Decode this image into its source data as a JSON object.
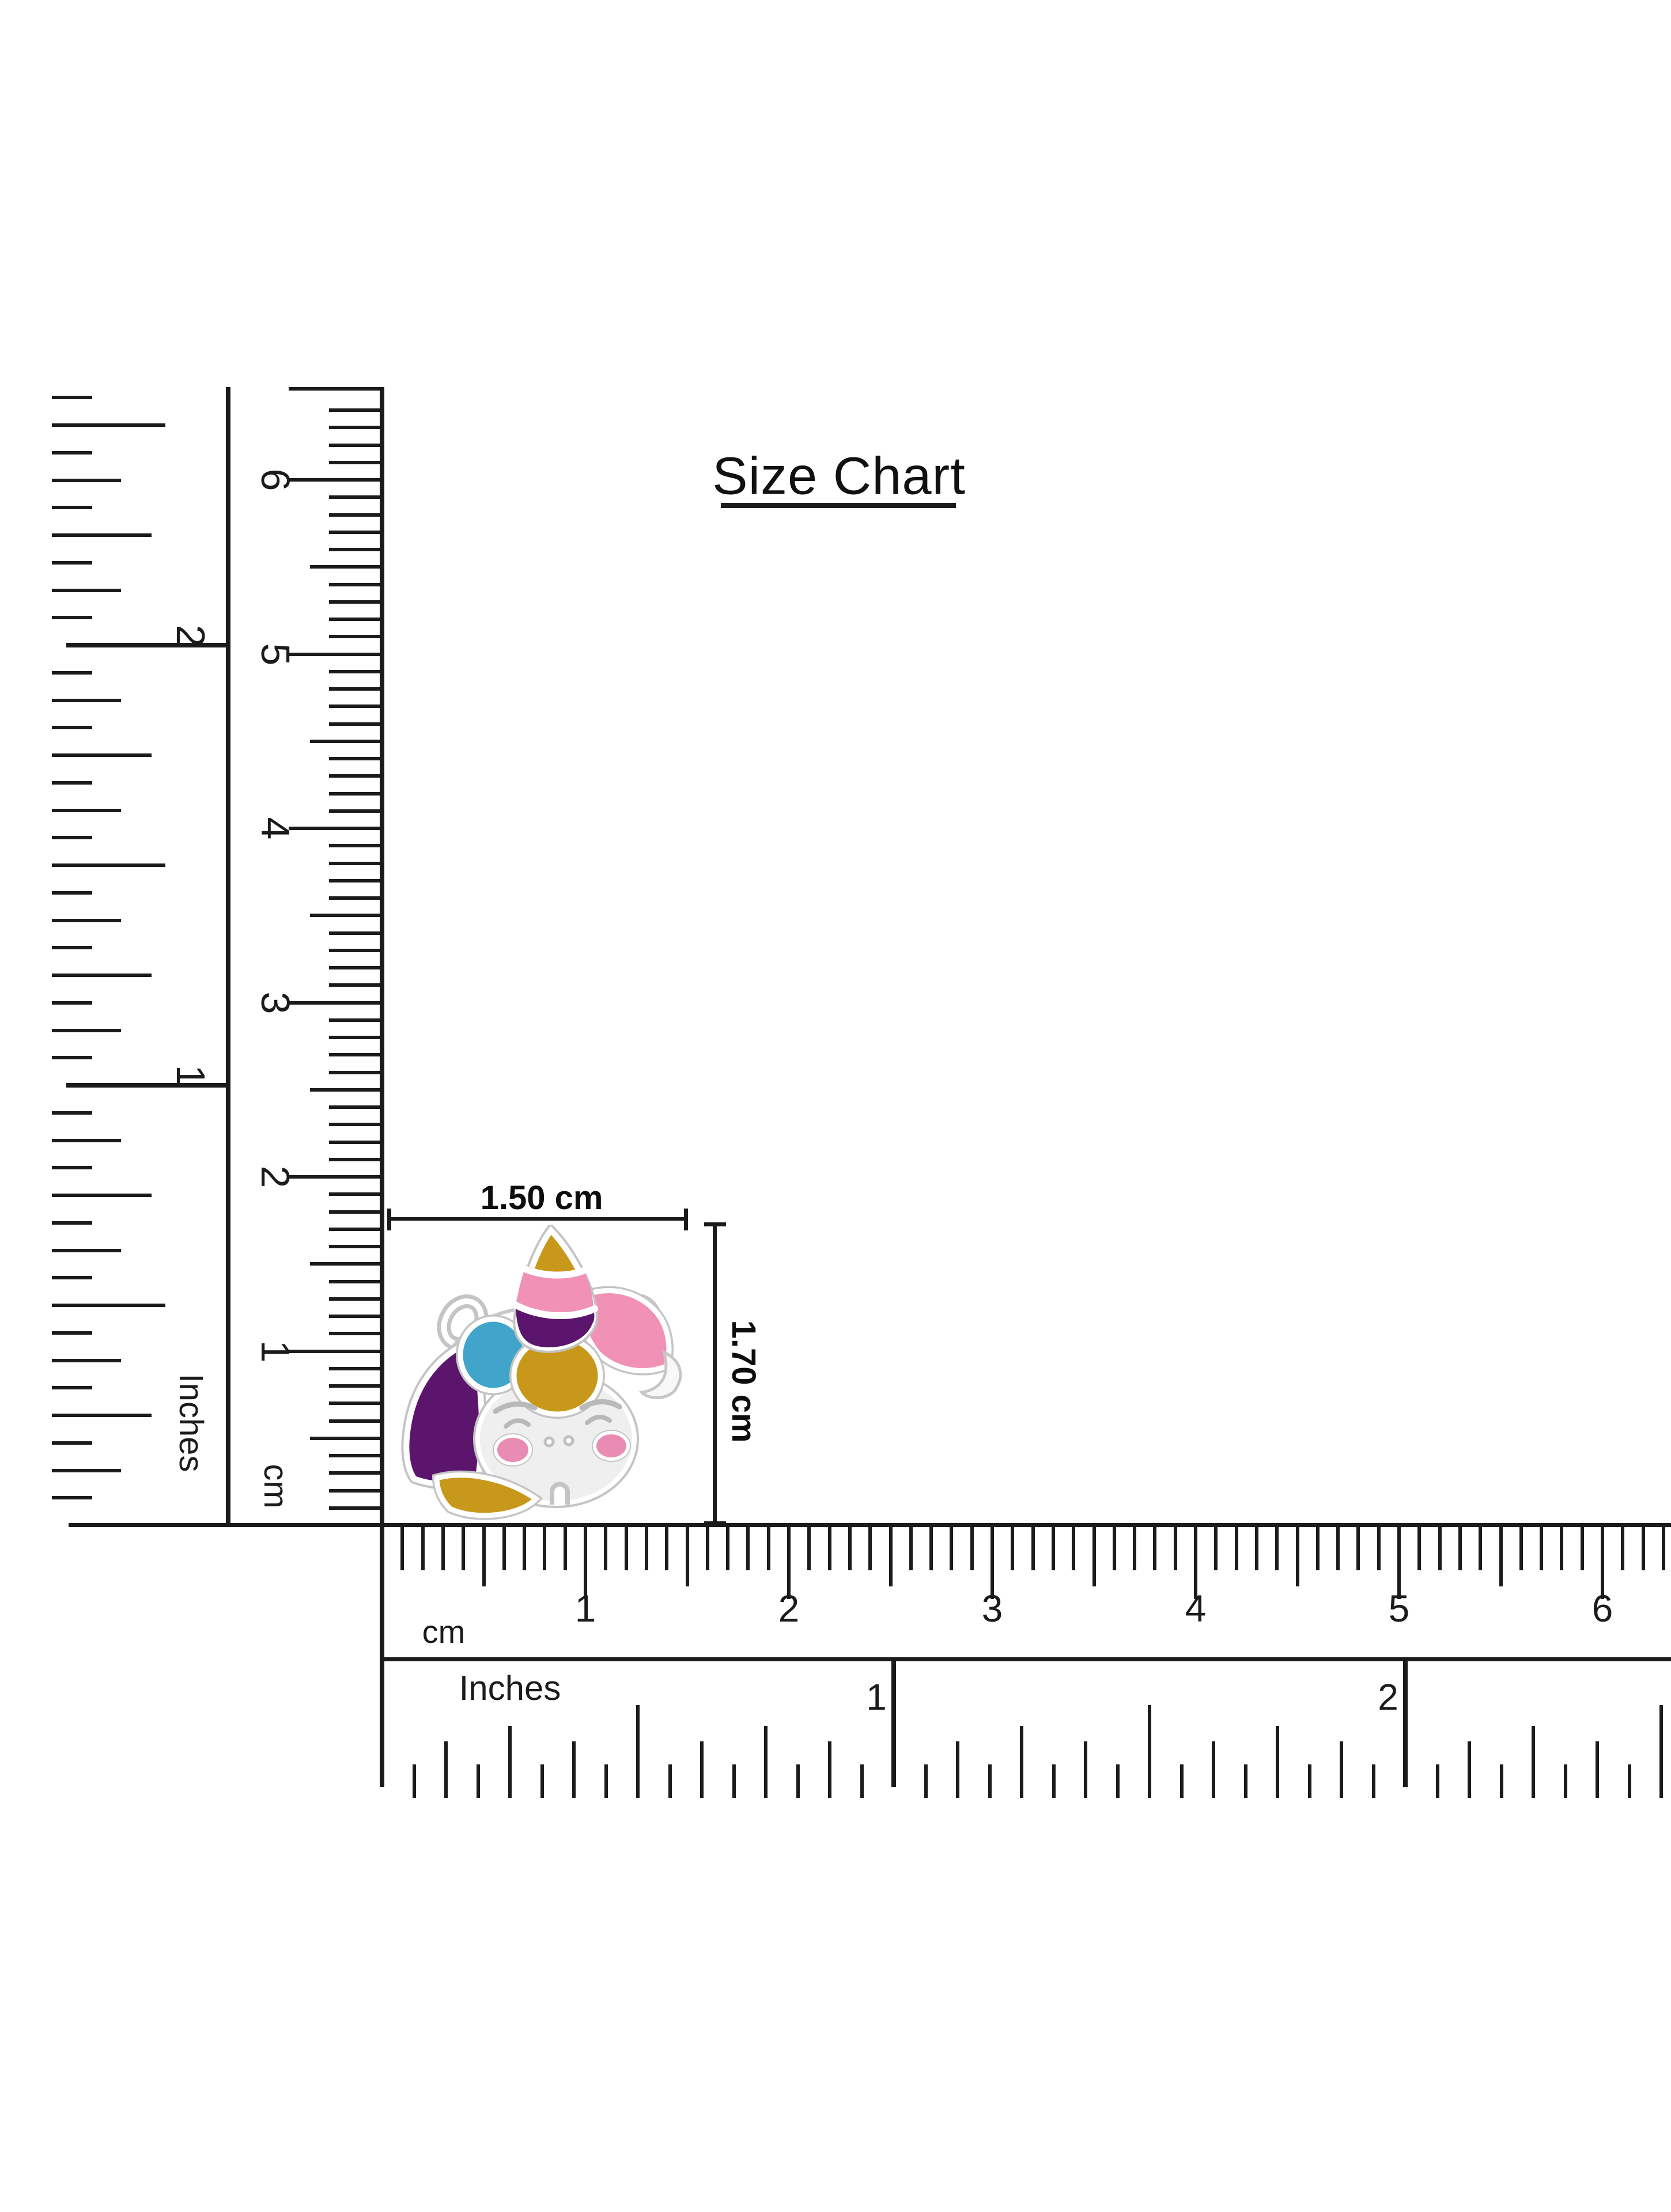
{
  "title": {
    "text": "Size Chart"
  },
  "size_annotations": {
    "width_label": "1.50 cm",
    "height_label": "1.70 cm"
  },
  "rulers": {
    "left_inches": {
      "unit_label": "Inches",
      "numbers": [
        "1",
        "2"
      ]
    },
    "left_cm": {
      "unit_label": "cm",
      "numbers": [
        "1",
        "2",
        "3",
        "4",
        "5",
        "6"
      ]
    },
    "bottom_cm": {
      "unit_label": "cm",
      "numbers": [
        "1",
        "2",
        "3",
        "4",
        "5",
        "6"
      ]
    },
    "bottom_inches": {
      "unit_label": "Inches",
      "numbers": [
        "1",
        "2"
      ]
    }
  },
  "charm": {
    "description": "Enamel unicorn head charm with silver outline, striped horn, multicolor mane, closed eyes, pink cheeks and bottom bail",
    "colors": {
      "gold": "#C8981B",
      "pink": "#F191B5",
      "purple": "#5C156C",
      "blue": "#41A4CA",
      "cheek": "#E98CB3",
      "face": "#EFEFEF",
      "silver": "#C4C4C4"
    }
  },
  "page": {
    "background": "#FFFFFF",
    "line_color": "#1B1B1B"
  }
}
